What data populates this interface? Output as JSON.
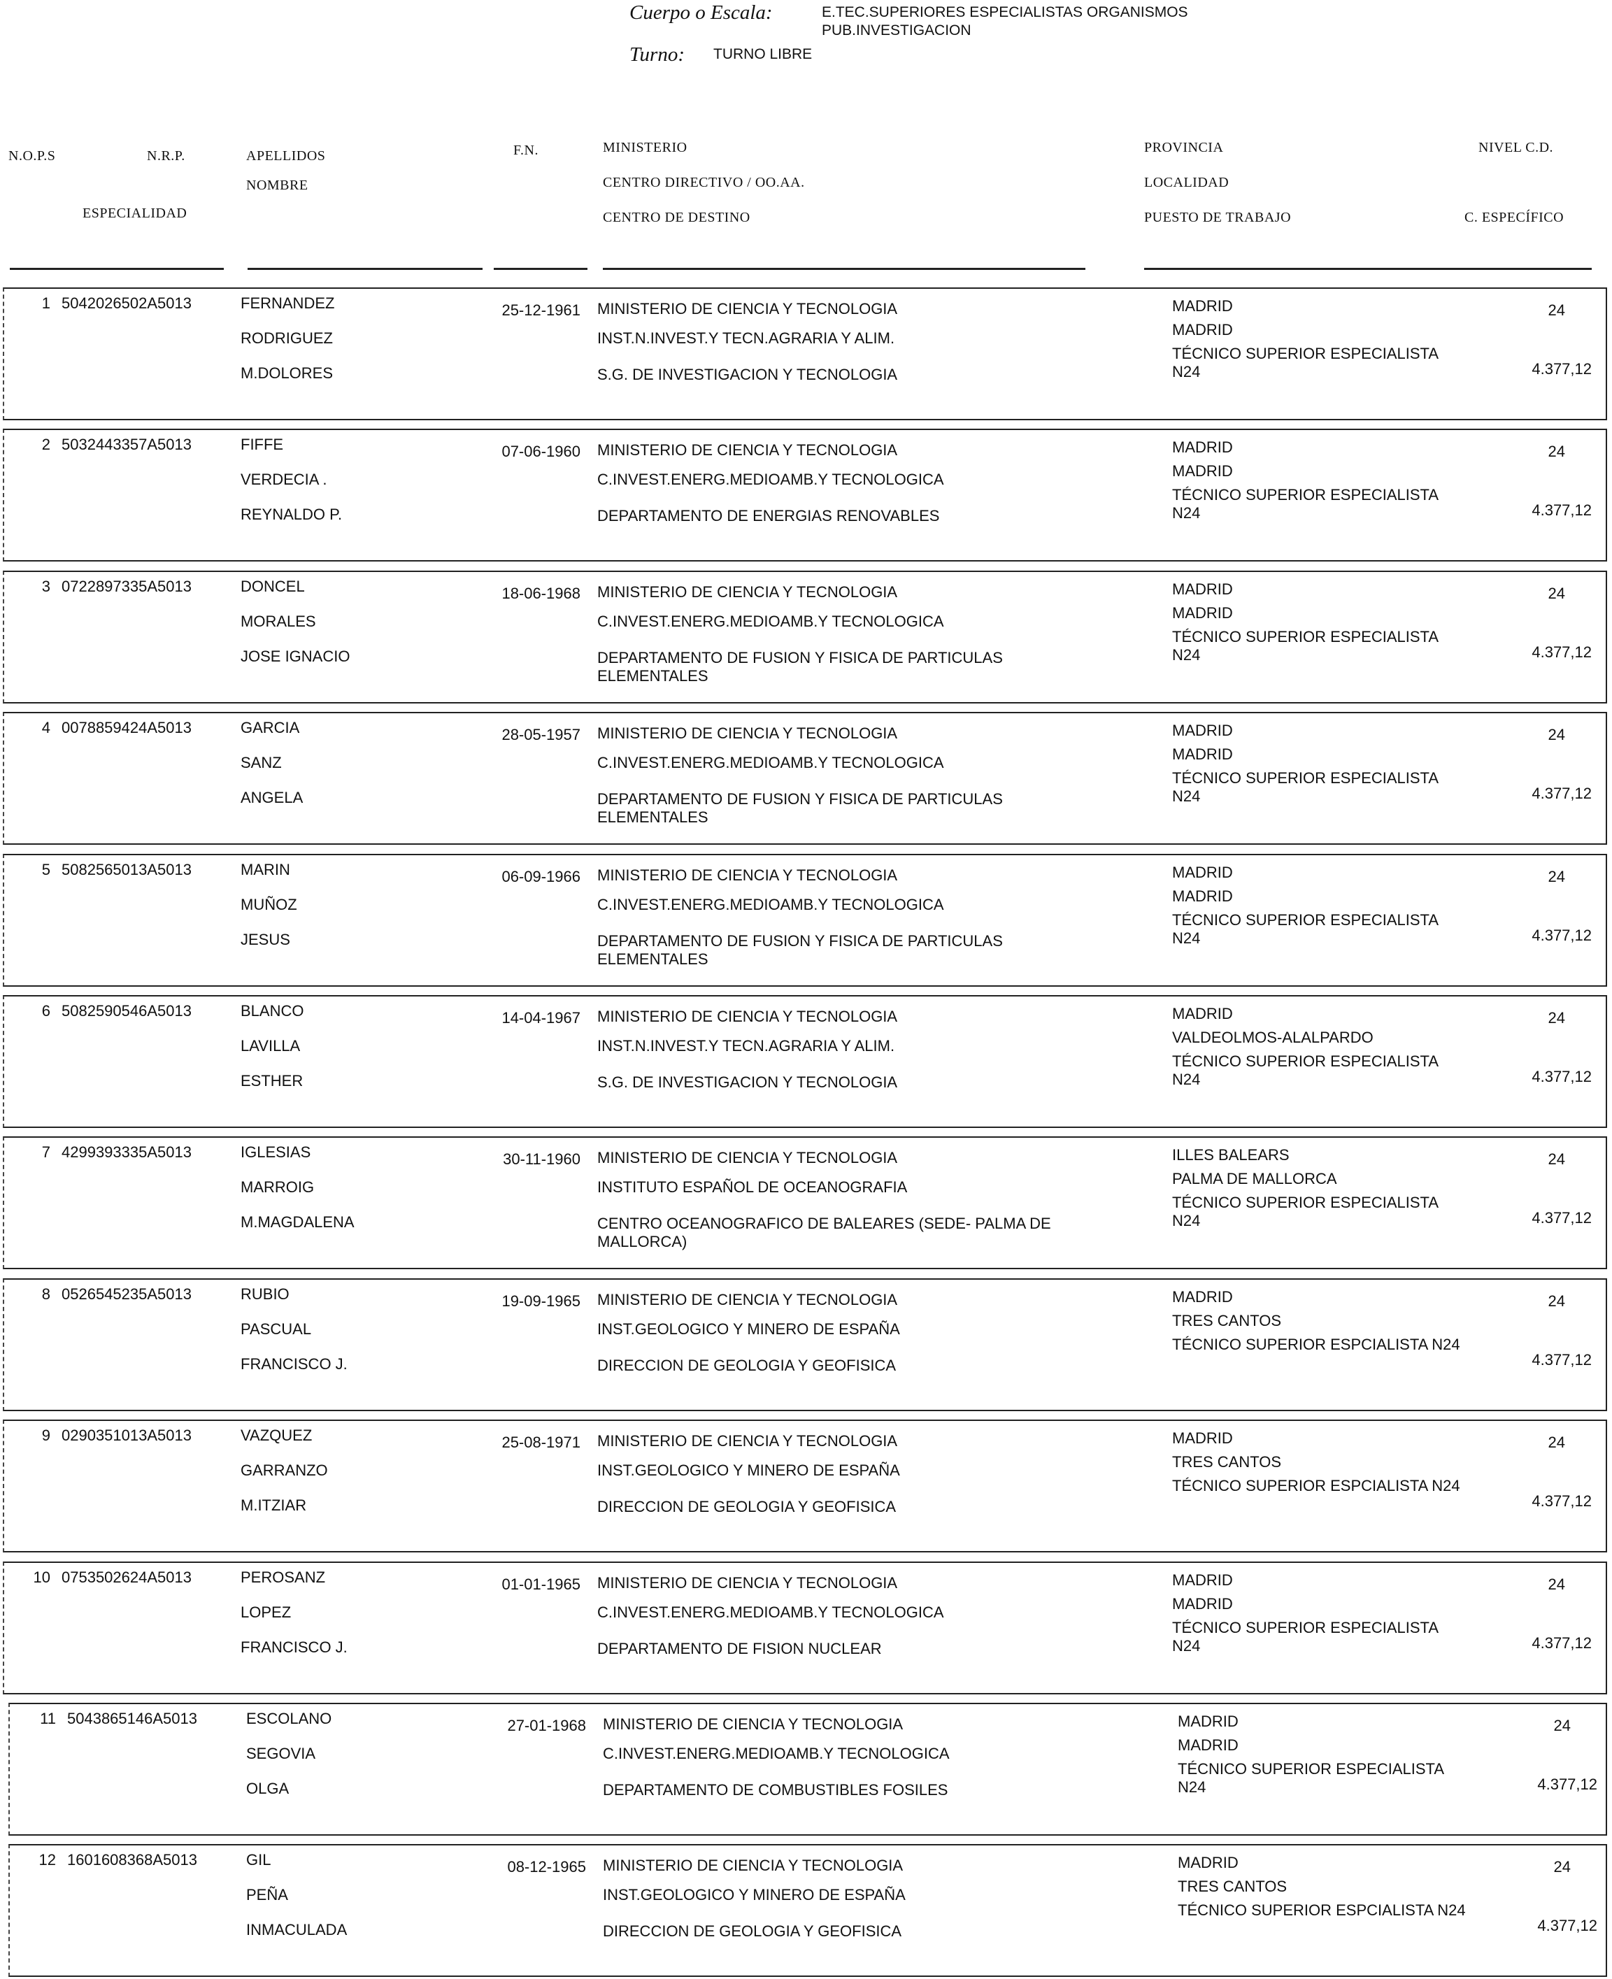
{
  "header": {
    "cuerpo_label": "Cuerpo o Escala:",
    "cuerpo_value_1": "E.TEC.SUPERIORES ESPECIALISTAS ORGANISMOS",
    "cuerpo_value_2": "PUB.INVESTIGACION",
    "turno_label": "Turno:",
    "turno_value": "TURNO LIBRE"
  },
  "columns": {
    "nops": "N.O.P.S",
    "nrp": "N.R.P.",
    "apellidos": "APELLIDOS",
    "nombre": "NOMBRE",
    "especialidad": "ESPECIALIDAD",
    "fn": "F.N.",
    "ministerio": "MINISTERIO",
    "centro_directivo": "CENTRO DIRECTIVO / OO.AA.",
    "centro_destino": "CENTRO DE DESTINO",
    "provincia": "PROVINCIA",
    "localidad": "LOCALIDAD",
    "puesto": "PUESTO DE TRABAJO",
    "nivel": "NIVEL C.D.",
    "especifico": "C. ESPECÍFICO"
  },
  "rows": [
    {
      "nops": "1",
      "nrp": "5042026502A5013",
      "ap1": "FERNANDEZ",
      "ap2": "RODRIGUEZ",
      "nombre": "M.DOLORES",
      "fn": "25-12-1961",
      "ministerio": "MINISTERIO DE CIENCIA Y TECNOLOGIA",
      "centro": "INST.N.INVEST.Y TECN.AGRARIA Y ALIM.",
      "destino": "S.G. DE INVESTIGACION Y TECNOLOGIA",
      "provincia": "MADRID",
      "localidad": "MADRID",
      "puesto": "TÉCNICO SUPERIOR ESPECIALISTA",
      "puesto2": "N24",
      "nivel": "24",
      "especifico": "4.377,12"
    },
    {
      "nops": "2",
      "nrp": "5032443357A5013",
      "ap1": "FIFFE",
      "ap2": "VERDECIA .",
      "nombre": "REYNALDO P.",
      "fn": "07-06-1960",
      "ministerio": "MINISTERIO DE CIENCIA Y TECNOLOGIA",
      "centro": "C.INVEST.ENERG.MEDIOAMB.Y TECNOLOGICA",
      "destino": "DEPARTAMENTO DE ENERGIAS RENOVABLES",
      "provincia": "MADRID",
      "localidad": "MADRID",
      "puesto": "TÉCNICO SUPERIOR ESPECIALISTA",
      "puesto2": "N24",
      "nivel": "24",
      "especifico": "4.377,12"
    },
    {
      "nops": "3",
      "nrp": "0722897335A5013",
      "ap1": "DONCEL",
      "ap2": "MORALES",
      "nombre": "JOSE IGNACIO",
      "fn": "18-06-1968",
      "ministerio": "MINISTERIO DE CIENCIA Y TECNOLOGIA",
      "centro": "C.INVEST.ENERG.MEDIOAMB.Y TECNOLOGICA",
      "destino": "DEPARTAMENTO DE FUSION Y FISICA DE PARTICULAS ELEMENTALES",
      "provincia": "MADRID",
      "localidad": "MADRID",
      "puesto": "TÉCNICO SUPERIOR ESPECIALISTA",
      "puesto2": "N24",
      "nivel": "24",
      "especifico": "4.377,12"
    },
    {
      "nops": "4",
      "nrp": "0078859424A5013",
      "ap1": "GARCIA",
      "ap2": "SANZ",
      "nombre": "ANGELA",
      "fn": "28-05-1957",
      "ministerio": "MINISTERIO DE CIENCIA Y TECNOLOGIA",
      "centro": "C.INVEST.ENERG.MEDIOAMB.Y TECNOLOGICA",
      "destino": "DEPARTAMENTO DE FUSION Y FISICA DE PARTICULAS ELEMENTALES",
      "provincia": "MADRID",
      "localidad": "MADRID",
      "puesto": "TÉCNICO SUPERIOR ESPECIALISTA",
      "puesto2": "N24",
      "nivel": "24",
      "especifico": "4.377,12"
    },
    {
      "nops": "5",
      "nrp": "5082565013A5013",
      "ap1": "MARIN",
      "ap2": "MUÑOZ",
      "nombre": "JESUS",
      "fn": "06-09-1966",
      "ministerio": "MINISTERIO DE CIENCIA Y TECNOLOGIA",
      "centro": "C.INVEST.ENERG.MEDIOAMB.Y TECNOLOGICA",
      "destino": "DEPARTAMENTO DE FUSION Y FISICA DE PARTICULAS ELEMENTALES",
      "provincia": "MADRID",
      "localidad": "MADRID",
      "puesto": "TÉCNICO SUPERIOR ESPECIALISTA",
      "puesto2": "N24",
      "nivel": "24",
      "especifico": "4.377,12"
    },
    {
      "nops": "6",
      "nrp": "5082590546A5013",
      "ap1": "BLANCO",
      "ap2": "LAVILLA",
      "nombre": "ESTHER",
      "fn": "14-04-1967",
      "ministerio": "MINISTERIO DE CIENCIA Y TECNOLOGIA",
      "centro": "INST.N.INVEST.Y TECN.AGRARIA Y ALIM.",
      "destino": "S.G. DE INVESTIGACION Y TECNOLOGIA",
      "provincia": "MADRID",
      "localidad": "VALDEOLMOS-ALALPARDO",
      "puesto": "TÉCNICO SUPERIOR ESPECIALISTA",
      "puesto2": "N24",
      "nivel": "24",
      "especifico": "4.377,12"
    },
    {
      "nops": "7",
      "nrp": "4299393335A5013",
      "ap1": "IGLESIAS",
      "ap2": "MARROIG",
      "nombre": "M.MAGDALENA",
      "fn": "30-11-1960",
      "ministerio": "MINISTERIO DE CIENCIA Y TECNOLOGIA",
      "centro": "INSTITUTO ESPAÑOL DE OCEANOGRAFIA",
      "destino": "CENTRO OCEANOGRAFICO DE BALEARES (SEDE- PALMA DE MALLORCA)",
      "provincia": "ILLES BALEARS",
      "localidad": "PALMA DE MALLORCA",
      "puesto": "TÉCNICO SUPERIOR ESPECIALISTA",
      "puesto2": "N24",
      "nivel": "24",
      "especifico": "4.377,12"
    },
    {
      "nops": "8",
      "nrp": "0526545235A5013",
      "ap1": "RUBIO",
      "ap2": "PASCUAL",
      "nombre": "FRANCISCO J.",
      "fn": "19-09-1965",
      "ministerio": "MINISTERIO DE CIENCIA Y TECNOLOGIA",
      "centro": "INST.GEOLOGICO Y MINERO DE ESPAÑA",
      "destino": "DIRECCION DE GEOLOGIA Y GEOFISICA",
      "provincia": "MADRID",
      "localidad": "TRES CANTOS",
      "puesto": "TÉCNICO SUPERIOR ESPCIALISTA N24",
      "puesto2": "",
      "nivel": "24",
      "especifico": "4.377,12"
    },
    {
      "nops": "9",
      "nrp": "0290351013A5013",
      "ap1": "VAZQUEZ",
      "ap2": "GARRANZO",
      "nombre": "M.ITZIAR",
      "fn": "25-08-1971",
      "ministerio": "MINISTERIO DE CIENCIA Y TECNOLOGIA",
      "centro": "INST.GEOLOGICO Y MINERO DE ESPAÑA",
      "destino": "DIRECCION DE GEOLOGIA Y GEOFISICA",
      "provincia": "MADRID",
      "localidad": "TRES CANTOS",
      "puesto": "TÉCNICO SUPERIOR ESPCIALISTA N24",
      "puesto2": "",
      "nivel": "24",
      "especifico": "4.377,12"
    },
    {
      "nops": "10",
      "nrp": "0753502624A5013",
      "ap1": "PEROSANZ",
      "ap2": "LOPEZ",
      "nombre": "FRANCISCO J.",
      "fn": "01-01-1965",
      "ministerio": "MINISTERIO DE CIENCIA Y TECNOLOGIA",
      "centro": "C.INVEST.ENERG.MEDIOAMB.Y TECNOLOGICA",
      "destino": "DEPARTAMENTO DE FISION NUCLEAR",
      "provincia": "MADRID",
      "localidad": "MADRID",
      "puesto": "TÉCNICO SUPERIOR ESPECIALISTA",
      "puesto2": "N24",
      "nivel": "24",
      "especifico": "4.377,12"
    },
    {
      "nops": "11",
      "nrp": "5043865146A5013",
      "ap1": "ESCOLANO",
      "ap2": "SEGOVIA",
      "nombre": "OLGA",
      "fn": "27-01-1968",
      "ministerio": "MINISTERIO DE CIENCIA Y TECNOLOGIA",
      "centro": "C.INVEST.ENERG.MEDIOAMB.Y TECNOLOGICA",
      "destino": "DEPARTAMENTO DE COMBUSTIBLES FOSILES",
      "provincia": "MADRID",
      "localidad": "MADRID",
      "puesto": "TÉCNICO SUPERIOR ESPECIALISTA",
      "puesto2": "N24",
      "nivel": "24",
      "especifico": "4.377,12"
    },
    {
      "nops": "12",
      "nrp": "1601608368A5013",
      "ap1": "GIL",
      "ap2": "PEÑA",
      "nombre": "INMACULADA",
      "fn": "08-12-1965",
      "ministerio": "MINISTERIO DE CIENCIA Y TECNOLOGIA",
      "centro": "INST.GEOLOGICO Y MINERO DE ESPAÑA",
      "destino": "DIRECCION DE GEOLOGIA Y GEOFISICA",
      "provincia": "MADRID",
      "localidad": "TRES CANTOS",
      "puesto": "TÉCNICO SUPERIOR ESPCIALISTA N24",
      "puesto2": "",
      "nivel": "24",
      "especifico": "4.377,12"
    }
  ]
}
